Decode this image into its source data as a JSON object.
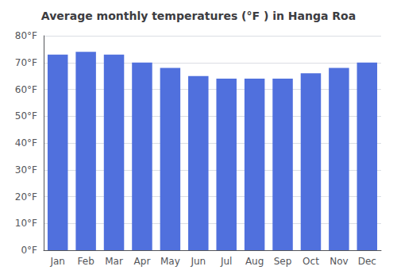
{
  "chart_data": {
    "type": "bar",
    "title": "Average monthly temperatures (°F ) in Hanga Roa",
    "categories": [
      "Jan",
      "Feb",
      "Mar",
      "Apr",
      "May",
      "Jun",
      "Jul",
      "Aug",
      "Sep",
      "Oct",
      "Nov",
      "Dec"
    ],
    "values": [
      73,
      74,
      73,
      70,
      68,
      65,
      64,
      64,
      64,
      66,
      68,
      70
    ],
    "ylim": [
      0,
      80
    ],
    "yticks": [
      {
        "value": 0,
        "label": "0°F"
      },
      {
        "value": 10,
        "label": "10°F"
      },
      {
        "value": 20,
        "label": "20°F"
      },
      {
        "value": 30,
        "label": "30°F"
      },
      {
        "value": 40,
        "label": "40°F"
      },
      {
        "value": 50,
        "label": "50°F"
      },
      {
        "value": 60,
        "label": "60°F"
      },
      {
        "value": 70,
        "label": "70°F"
      },
      {
        "value": 80,
        "label": "80°F"
      }
    ],
    "grid": true
  }
}
